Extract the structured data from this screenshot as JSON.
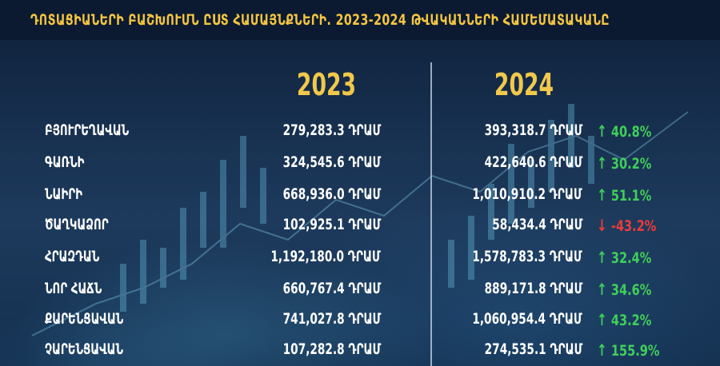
{
  "title": "ԴՈՏԱՑԻԱՆԵՐԻ ԲԱՇԽՈՒՄՆ ԸՍՏ ՀԱՄԱՅՆՔՆԵՐԻ. 2023-2024 ԹՎԱԿԱՆՆԵՐԻ ՀԱՄԵՄԱՏԱԿԱՆԸ",
  "years": {
    "y2023": "2023",
    "y2024": "2024"
  },
  "colors": {
    "accent": "#f2c84b",
    "up": "#3fcf5a",
    "down": "#ec3b3b"
  },
  "rows": [
    {
      "name": "ԲՅՈՒՐԵՂԱՎԱՆ",
      "v2023": "279,283.3 ԴՐԱՄ",
      "v2024": "393,318.7 ԴՐԱՄ",
      "change": "40.8%",
      "dir": "up",
      "arrow": "up-arrow-icon"
    },
    {
      "name": "ԳԱՌՆԻ",
      "v2023": "324,545.6 ԴՐԱՄ",
      "v2024": "422,640.6 ԴՐԱՄ",
      "change": "30.2%",
      "dir": "up",
      "arrow": "up-arrow-icon"
    },
    {
      "name": "ՆԱԻՐԻ",
      "v2023": "668,936.0 ԴՐԱՄ",
      "v2024": "1,010,910.2 ԴՐԱՄ",
      "change": "51.1%",
      "dir": "up",
      "arrow": "up-arrow-icon"
    },
    {
      "name": "ԾԱՂԿԱՁՈՐ",
      "v2023": "102,925.1 ԴՐԱՄ",
      "v2024": "58,434.4 ԴՐԱՄ",
      "change": "-43.2%",
      "dir": "down",
      "arrow": "down-arrow-icon"
    },
    {
      "name": "ՀՐԱԶԴԱՆ",
      "v2023": "1,192,180.0 ԴՐԱՄ",
      "v2024": "1,578,783.3 ԴՐԱՄ",
      "change": "32.4%",
      "dir": "up",
      "arrow": "up-arrow-icon"
    },
    {
      "name": "ՆՈՐ ՀԱՃՆ",
      "v2023": "660,767.4 ԴՐԱՄ",
      "v2024": "889,171.8 ԴՐԱՄ",
      "change": "34.6%",
      "dir": "up",
      "arrow": "up-arrow-icon"
    },
    {
      "name": "ՔԱՐԵՆՑԱՎԱՆ",
      "v2023": "741,027.8 ԴՐԱՄ",
      "v2024": "1,060,954.4 ԴՐԱՄ",
      "change": "43.2%",
      "dir": "up",
      "arrow": "up-arrow-icon"
    },
    {
      "name": "ՉԱՐԵՆՑԱՎԱՆ",
      "v2023": "107,282.8 ԴՐԱՄ",
      "v2024": "274,535.1 ԴՐԱՄ",
      "change": "155.9%",
      "dir": "up",
      "arrow": "up-arrow-icon"
    }
  ]
}
